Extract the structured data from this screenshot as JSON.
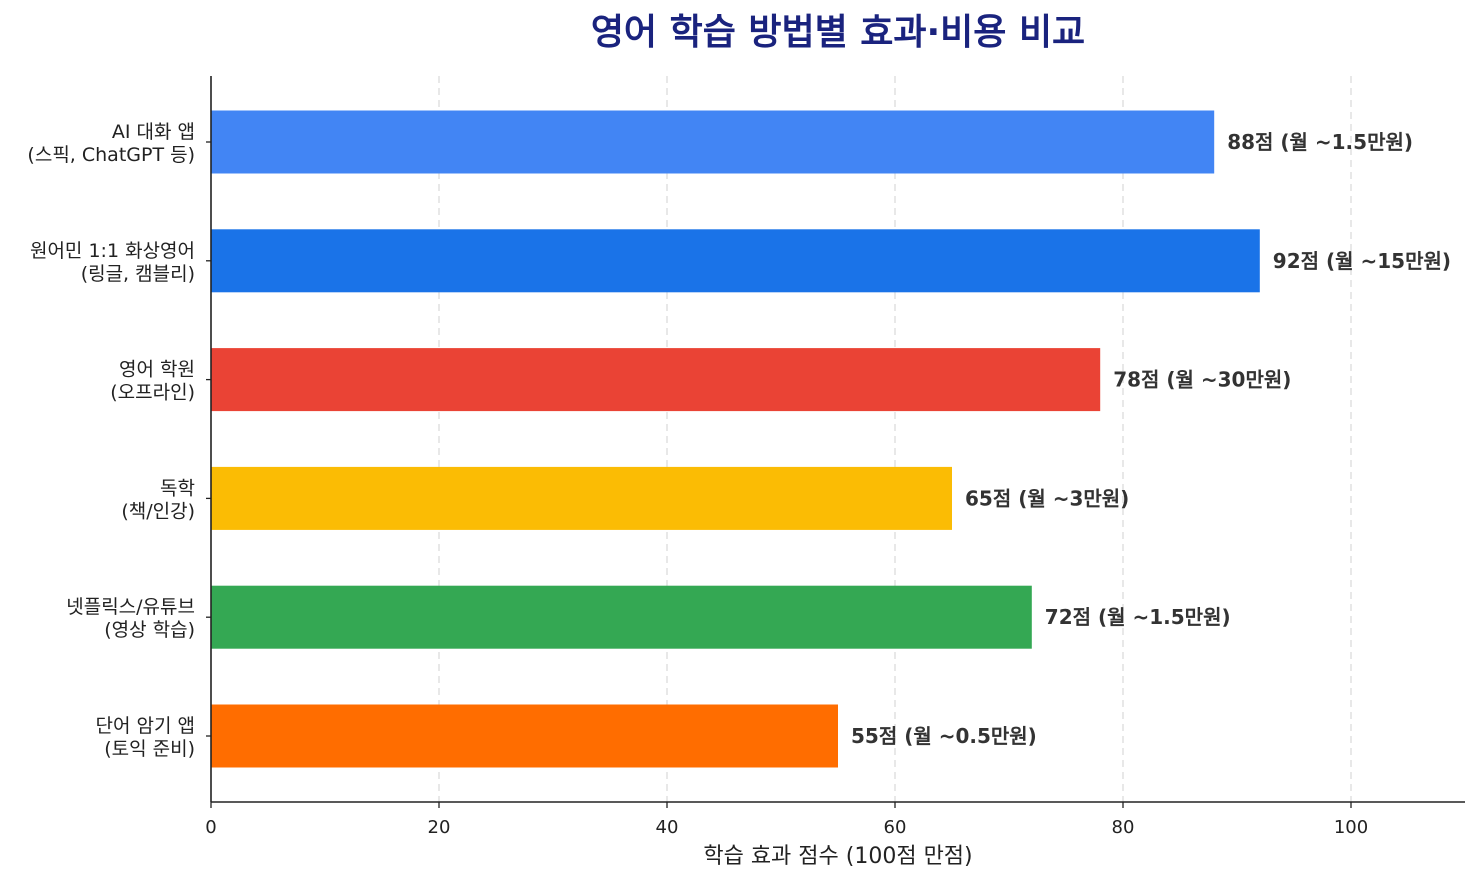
{
  "chart_data": {
    "type": "bar",
    "orientation": "horizontal",
    "title": "영어 학습 방법별 효과·비용 비교",
    "xlabel": "학습 효과 점수 (100점 만점)",
    "ylabel": "",
    "xlim": [
      0,
      110
    ],
    "xticks": [
      0,
      20,
      40,
      60,
      80,
      100
    ],
    "grid": "x-dashed",
    "categories": [
      [
        "AI 대화 앱",
        "(스픽, ChatGPT 등)"
      ],
      [
        "원어민 1:1 화상영어",
        "(링글, 캠블리)"
      ],
      [
        "영어 학원",
        "(오프라인)"
      ],
      [
        "독학",
        "(책/인강)"
      ],
      [
        "넷플릭스/유튜브",
        "(영상 학습)"
      ],
      [
        "단어 암기 앱",
        "(토익 준비)"
      ]
    ],
    "values": [
      88,
      92,
      78,
      65,
      72,
      55
    ],
    "data_labels": [
      "88점 (월 ~1.5만원)",
      "92점 (월 ~15만원)",
      "78점 (월 ~30만원)",
      "65점 (월 ~3만원)",
      "72점 (월 ~1.5만원)",
      "55점 (월 ~0.5만원)"
    ],
    "colors": [
      "#4285f4",
      "#1a73e8",
      "#ea4335",
      "#fbbc04",
      "#34a853",
      "#ff6d00"
    ]
  }
}
